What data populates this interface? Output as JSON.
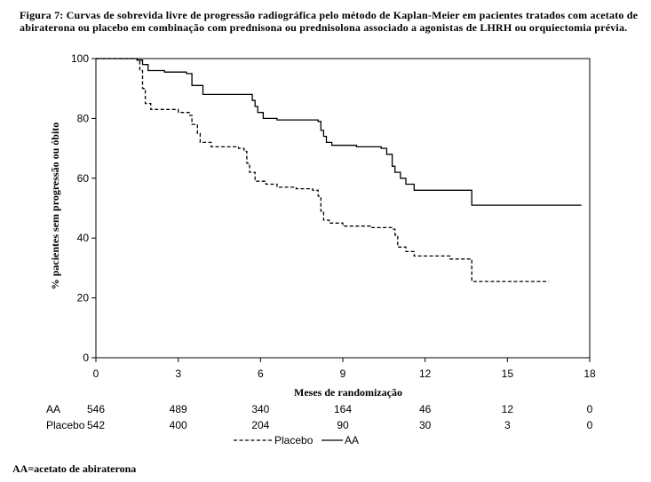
{
  "caption": "Figura 7: Curvas de sobrevida livre de progressão radiográfica pelo método de Kaplan-Meier em pacientes tratados com acetato de abiraterona ou placebo em combinação com prednisona ou prednisolona associado a agonistas de LHRH ou orquiectomia prévia.",
  "footnote": "AA=acetato de abiraterona",
  "chart_data": {
    "type": "line",
    "subtype": "kaplan-meier step",
    "xlabel": "Meses de randomização",
    "ylabel": "% pacientes sem progressão ou óbito",
    "xlim": [
      0,
      18
    ],
    "ylim": [
      0,
      100
    ],
    "xticks": [
      0,
      3,
      6,
      9,
      12,
      15,
      18
    ],
    "xtick_labels": [
      "0",
      "3",
      "6",
      "9",
      "12",
      "15",
      "18"
    ],
    "yticks": [
      0,
      20,
      40,
      60,
      80,
      100
    ],
    "ytick_labels": [
      "0",
      "20",
      "40",
      "60",
      "80",
      "100"
    ],
    "grid": false,
    "legend_position": "bottom-center",
    "series": [
      {
        "name": "AA",
        "line_style": "solid",
        "color": "#000000",
        "points": [
          [
            0,
            100
          ],
          [
            1.5,
            99.5
          ],
          [
            1.7,
            98
          ],
          [
            1.9,
            96
          ],
          [
            2.5,
            95.5
          ],
          [
            3.3,
            95
          ],
          [
            3.5,
            91
          ],
          [
            3.9,
            88
          ],
          [
            5.4,
            88
          ],
          [
            5.7,
            86
          ],
          [
            5.8,
            84
          ],
          [
            5.9,
            82
          ],
          [
            6.1,
            80
          ],
          [
            6.6,
            79.5
          ],
          [
            8.1,
            79
          ],
          [
            8.2,
            76
          ],
          [
            8.3,
            74
          ],
          [
            8.4,
            72
          ],
          [
            8.6,
            71
          ],
          [
            9.5,
            70.5
          ],
          [
            10.4,
            70
          ],
          [
            10.6,
            68
          ],
          [
            10.8,
            64
          ],
          [
            10.9,
            62
          ],
          [
            11.1,
            60
          ],
          [
            11.3,
            58
          ],
          [
            11.6,
            56
          ],
          [
            13.6,
            56
          ],
          [
            13.7,
            51
          ],
          [
            17.7,
            51
          ]
        ]
      },
      {
        "name": "Placebo",
        "line_style": "dashed",
        "color": "#000000",
        "points": [
          [
            0,
            100
          ],
          [
            1.5,
            99.5
          ],
          [
            1.6,
            96
          ],
          [
            1.7,
            90
          ],
          [
            1.8,
            85
          ],
          [
            2.0,
            83
          ],
          [
            3.0,
            82
          ],
          [
            3.4,
            81
          ],
          [
            3.5,
            78
          ],
          [
            3.7,
            75
          ],
          [
            3.8,
            72
          ],
          [
            4.2,
            70.5
          ],
          [
            5.2,
            70
          ],
          [
            5.4,
            69
          ],
          [
            5.5,
            65
          ],
          [
            5.6,
            62
          ],
          [
            5.8,
            59
          ],
          [
            6.2,
            58
          ],
          [
            6.6,
            57
          ],
          [
            7.3,
            56.5
          ],
          [
            7.9,
            56
          ],
          [
            8.1,
            54
          ],
          [
            8.2,
            49
          ],
          [
            8.3,
            46
          ],
          [
            8.5,
            45
          ],
          [
            9.0,
            44
          ],
          [
            10.0,
            43.5
          ],
          [
            10.8,
            43
          ],
          [
            10.9,
            41
          ],
          [
            11.0,
            37
          ],
          [
            11.3,
            35.5
          ],
          [
            11.6,
            34
          ],
          [
            12.7,
            34
          ],
          [
            12.9,
            33
          ],
          [
            13.6,
            33
          ],
          [
            13.7,
            25.5
          ],
          [
            16.5,
            25.5
          ]
        ]
      }
    ],
    "risk_table": {
      "columns_x": [
        0,
        3,
        6,
        9,
        12,
        15,
        18
      ],
      "rows": [
        {
          "label": "AA",
          "values": [
            "546",
            "489",
            "340",
            "164",
            "46",
            "12",
            "0"
          ]
        },
        {
          "label": "Placebo",
          "values": [
            "542",
            "400",
            "204",
            "90",
            "30",
            "3",
            "0"
          ]
        }
      ]
    },
    "legend": [
      {
        "label": "Placebo",
        "line_style": "dashed"
      },
      {
        "label": "AA",
        "line_style": "solid"
      }
    ]
  }
}
